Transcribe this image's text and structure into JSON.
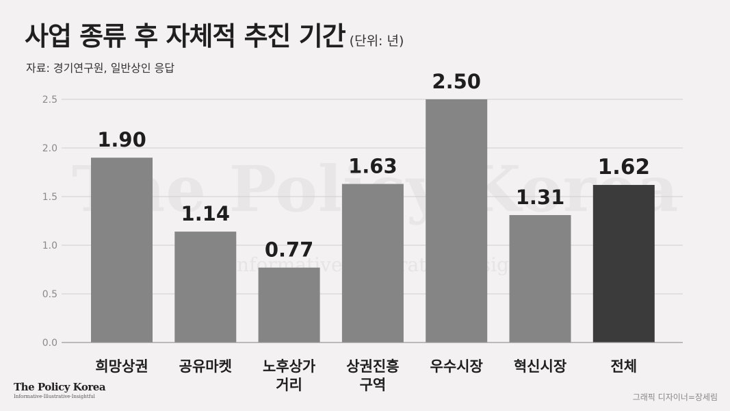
{
  "header": {
    "title": "사업 종류 후 자체적 추진 기간",
    "unit": "(단위: 년)",
    "source": "자료: 경기연구원, 일반상인 응답"
  },
  "watermark": {
    "text": "The Policy Korea",
    "tagline": "Informative·Illustrative·Insightful"
  },
  "footer": {
    "brand": "The Policy Korea",
    "tagline": "Informative·Illustrative·Insightful",
    "credit": "그래픽 디자이너=장세림"
  },
  "chart_data": {
    "type": "bar",
    "categories": [
      [
        "희망상권"
      ],
      [
        "공유마켓"
      ],
      [
        "노후상가",
        "거리"
      ],
      [
        "상권진흥",
        "구역"
      ],
      [
        "우수시장"
      ],
      [
        "혁신시장"
      ],
      [
        "전체"
      ]
    ],
    "values": [
      1.9,
      1.14,
      0.77,
      1.63,
      2.5,
      1.31,
      1.62
    ],
    "value_labels": [
      "1.90",
      "1.14",
      "0.77",
      "1.63",
      "2.50",
      "1.31",
      "1.62"
    ],
    "yticks": [
      "0.0",
      "0.5",
      "1.0",
      "1.5",
      "2.0",
      "2.5"
    ],
    "ylim": [
      0,
      2.5
    ],
    "grid": true,
    "legend": "none",
    "colors": {
      "bar": "#858585",
      "highlight": "#3b3b3b",
      "grid": "#cfcdce",
      "label": "#1e1e1e"
    },
    "highlight_index": 6
  }
}
